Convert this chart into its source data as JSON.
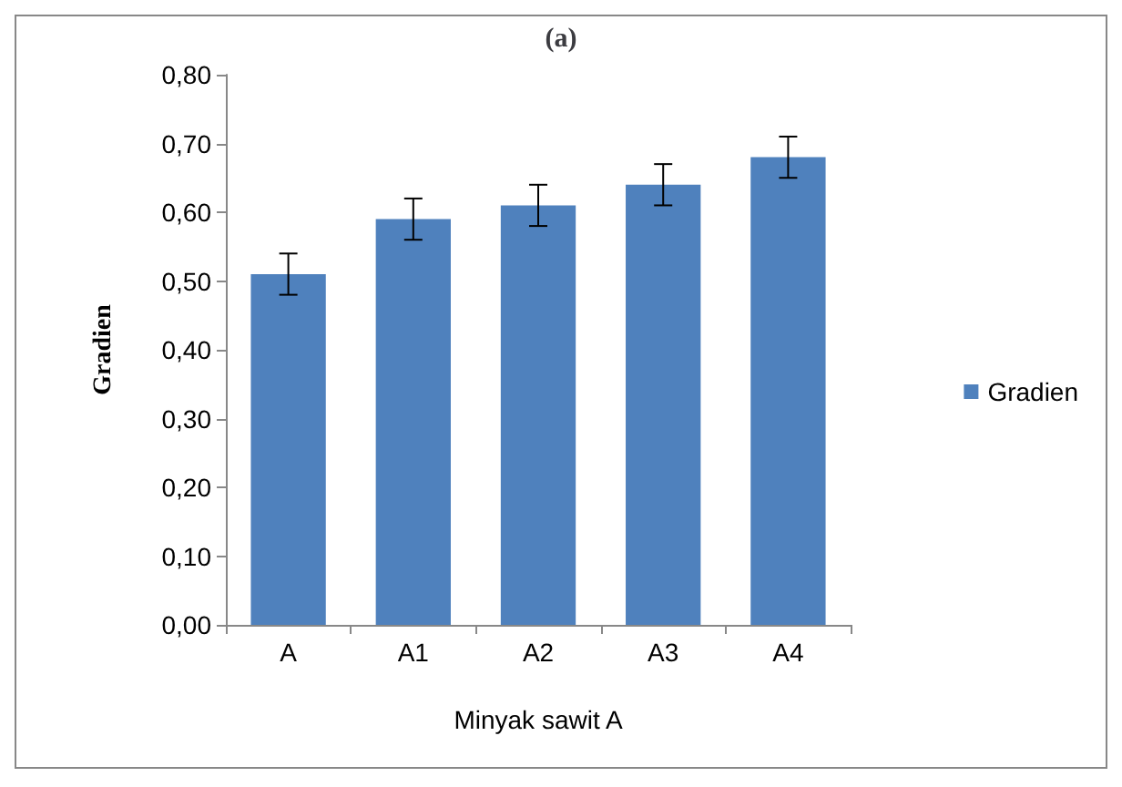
{
  "chart_data": {
    "type": "bar",
    "title": "(a)",
    "xlabel": "Minyak sawit A",
    "ylabel": "Gradien",
    "categories": [
      "A",
      "A1",
      "A2",
      "A3",
      "A4"
    ],
    "series": [
      {
        "name": "Gradien",
        "color": "#4f81bd",
        "values": [
          0.51,
          0.59,
          0.61,
          0.64,
          0.68
        ],
        "errors": [
          0.03,
          0.03,
          0.03,
          0.03,
          0.03
        ]
      }
    ],
    "ylim": [
      0,
      0.8
    ],
    "yticks": [
      {
        "value": 0,
        "label": "0,00"
      },
      {
        "value": 0.1,
        "label": "0,10"
      },
      {
        "value": 0.2,
        "label": "0,20"
      },
      {
        "value": 0.3,
        "label": "0,30"
      },
      {
        "value": 0.4,
        "label": "0,40"
      },
      {
        "value": 0.5,
        "label": "0,50"
      },
      {
        "value": 0.6,
        "label": "0,60"
      },
      {
        "value": 0.7,
        "label": "0,70"
      },
      {
        "value": 0.8,
        "label": "0,80"
      }
    ],
    "grid": false,
    "legend": "right"
  }
}
